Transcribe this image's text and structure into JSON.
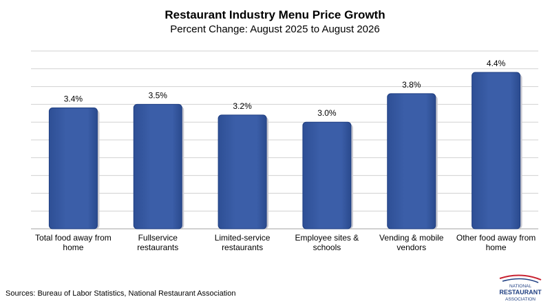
{
  "chart_data": {
    "type": "bar",
    "title": "Restaurant Industry Menu Price Growth",
    "subtitle": "Percent Change: August 2025 to August 2026",
    "categories": [
      [
        "Total food away from",
        "home"
      ],
      [
        "Fullservice",
        "restaurants"
      ],
      [
        "Limited-service",
        "restaurants"
      ],
      [
        "Employee sites &",
        "schools"
      ],
      [
        "Vending & mobile",
        "vendors"
      ],
      [
        "Other food away from",
        "home"
      ]
    ],
    "values": [
      3.4,
      3.5,
      3.2,
      3.0,
      3.8,
      4.4
    ],
    "value_labels": [
      "3.4%",
      "3.5%",
      "3.2%",
      "3.0%",
      "3.8%",
      "4.4%"
    ],
    "ylim": [
      0,
      5.0
    ],
    "grid": true,
    "legend": "none",
    "bar_color": "#3b5ea8",
    "bar_edge_color": "#1f3f82",
    "grid_color": "#d0d0d0"
  },
  "source": "Sources: Bureau of Labor Statistics, National Restaurant Association",
  "logo": {
    "line1": "NATIONAL",
    "line2": "RESTAURANT",
    "line3": "ASSOCIATION",
    "color": "#1f3f82",
    "accent": "#c8202f"
  }
}
